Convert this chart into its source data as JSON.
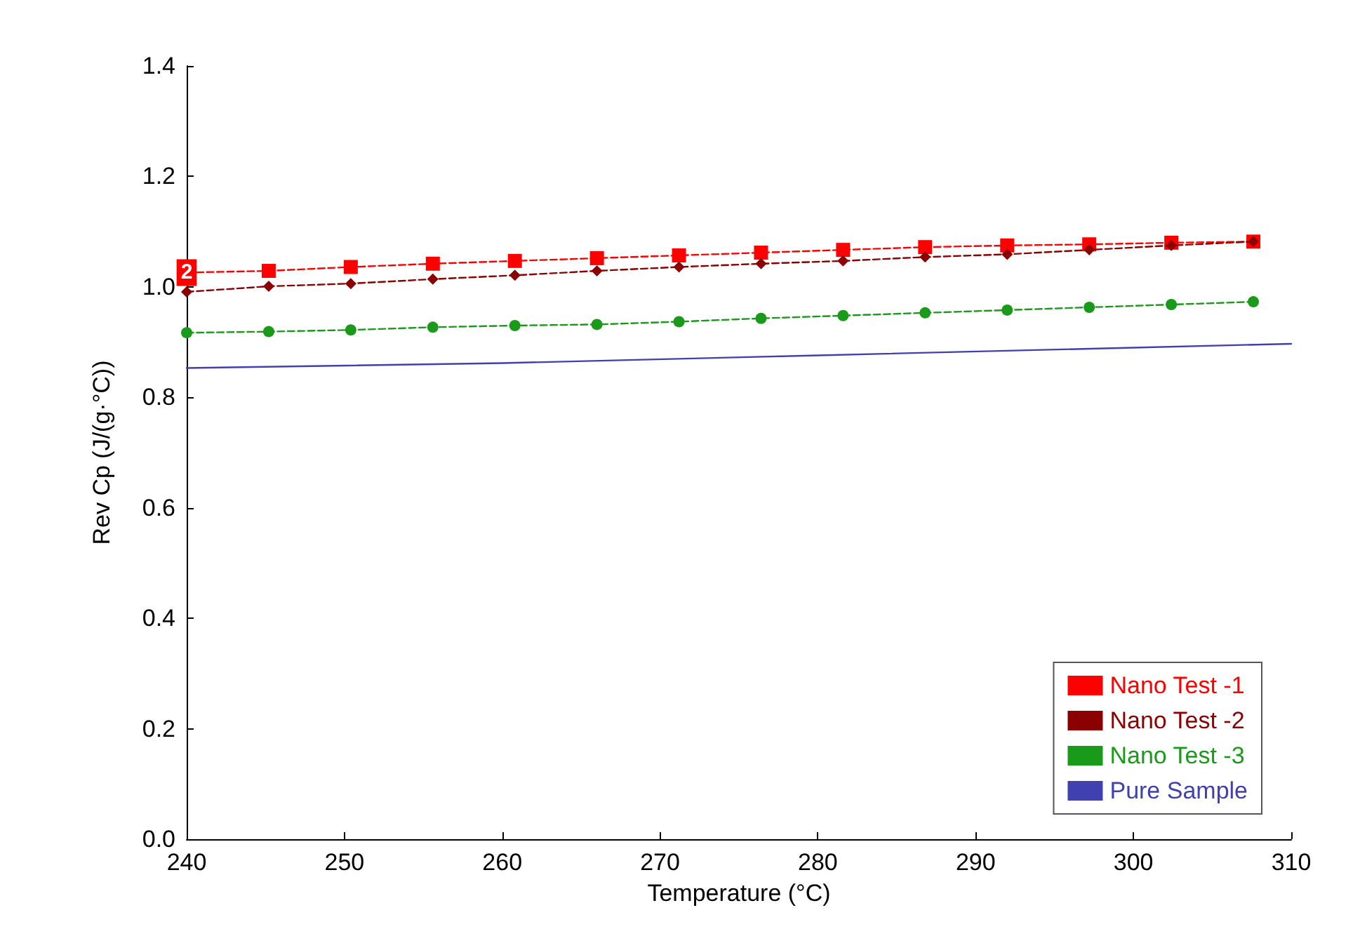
{
  "chart_data": {
    "type": "line",
    "xlabel": "Temperature (°C)",
    "ylabel": "Rev Cp (J/(g·°C))",
    "xlim": [
      240,
      310
    ],
    "xticks": [
      240,
      250,
      260,
      270,
      280,
      290,
      300,
      310
    ],
    "ylim": [
      0,
      1.4
    ],
    "yticks": [
      {
        "value": 0,
        "label": "0.0"
      },
      0.2,
      0.4,
      0.6,
      0.8,
      {
        "value": 1,
        "label": "1.0"
      },
      1.2,
      1.4
    ],
    "grid": false,
    "legend": "bottom right",
    "annotations": [
      {
        "text": "2",
        "x": 240,
        "y": 1.026
      }
    ],
    "series": [
      {
        "name": "Nano Test -1",
        "color": "#ff0000",
        "marker": "square",
        "line_style": "dashed",
        "x": [
          240,
          245.2,
          250.4,
          255.6,
          260.8,
          266,
          271.2,
          276.4,
          281.6,
          286.8,
          292,
          297.2,
          302.4,
          307.6
        ],
        "values": [
          1.026,
          1.029,
          1.036,
          1.042,
          1.047,
          1.052,
          1.057,
          1.062,
          1.067,
          1.072,
          1.075,
          1.077,
          1.08,
          1.082
        ]
      },
      {
        "name": "Nano Test -2",
        "color": "#8b0000",
        "marker": "diamond",
        "line_style": "dashed",
        "x": [
          240,
          245.2,
          250.4,
          255.6,
          260.8,
          266,
          271.2,
          276.4,
          281.6,
          286.8,
          292,
          297.2,
          302.4,
          307.6
        ],
        "values": [
          0.991,
          1.001,
          1.006,
          1.014,
          1.021,
          1.029,
          1.036,
          1.042,
          1.047,
          1.054,
          1.059,
          1.067,
          1.075,
          1.082
        ]
      },
      {
        "name": "Nano Test -3",
        "color": "#1a9a1a",
        "marker": "circle",
        "line_style": "dashed",
        "x": [
          240,
          245.2,
          250.4,
          255.6,
          260.8,
          266,
          271.2,
          276.4,
          281.6,
          286.8,
          292,
          297.2,
          302.4,
          307.6
        ],
        "values": [
          0.917,
          0.919,
          0.922,
          0.927,
          0.93,
          0.932,
          0.937,
          0.943,
          0.948,
          0.953,
          0.958,
          0.963,
          0.968,
          0.973
        ]
      },
      {
        "name": "Pure Sample",
        "color": "#4040b0",
        "marker": "none",
        "line_style": "solid",
        "x": [
          240,
          260,
          280,
          300,
          310
        ],
        "values": [
          0.853,
          0.862,
          0.876,
          0.89,
          0.897
        ]
      }
    ]
  }
}
